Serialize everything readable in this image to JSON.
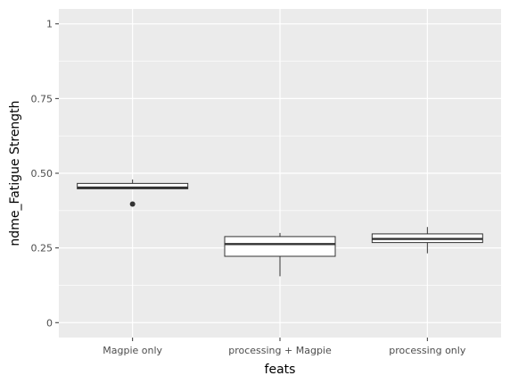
{
  "chart_data": {
    "type": "box",
    "title": "",
    "xlabel": "feats",
    "ylabel": "ndme_Fatigue Strength",
    "categories": [
      "Magpie only",
      "processing + Magpie",
      "processing only"
    ],
    "ylim": [
      -0.05,
      1.05
    ],
    "yticks": [
      0,
      0.25,
      0.5,
      0.75,
      1
    ],
    "ytick_labels": [
      "0",
      "0.25",
      "0.50",
      "0.75",
      "1"
    ],
    "boxes": [
      {
        "category": "Magpie only",
        "whisker_low": 0.447,
        "q1": 0.448,
        "median": 0.452,
        "q3": 0.466,
        "whisker_high": 0.479,
        "outliers": [
          0.397
        ]
      },
      {
        "category": "processing + Magpie",
        "whisker_low": 0.155,
        "q1": 0.222,
        "median": 0.263,
        "q3": 0.288,
        "whisker_high": 0.3,
        "outliers": []
      },
      {
        "category": "processing only",
        "whisker_low": 0.232,
        "q1": 0.268,
        "median": 0.28,
        "q3": 0.297,
        "whisker_high": 0.32,
        "outliers": []
      }
    ],
    "grid": true,
    "colors": {
      "panel": "#ebebeb",
      "grid": "#ffffff",
      "box_fill": "#ffffff",
      "box_line": "#333333"
    }
  }
}
